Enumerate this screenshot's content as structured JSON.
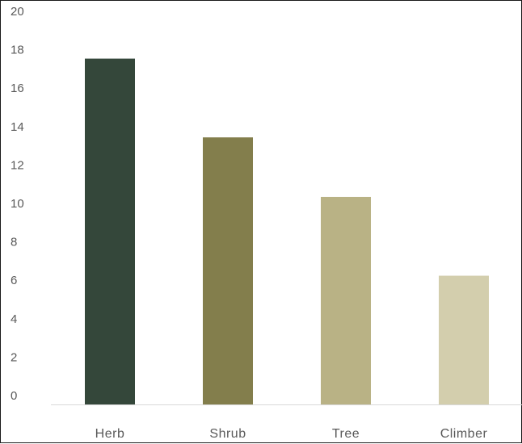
{
  "chart_data": {
    "type": "bar",
    "categories": [
      "Herb",
      "Shrub",
      "Tree",
      "Climber"
    ],
    "values": [
      18,
      13.9,
      10.8,
      6.7
    ],
    "colors": [
      "#34473a",
      "#837e4c",
      "#b9b285",
      "#d3cead"
    ],
    "y_ticks": [
      "0",
      "2",
      "4",
      "6",
      "8",
      "10",
      "12",
      "14",
      "16",
      "18",
      "20"
    ],
    "ylim": [
      0,
      20
    ],
    "grid": false,
    "legend": "none",
    "title": "",
    "xlabel": "",
    "ylabel": ""
  }
}
